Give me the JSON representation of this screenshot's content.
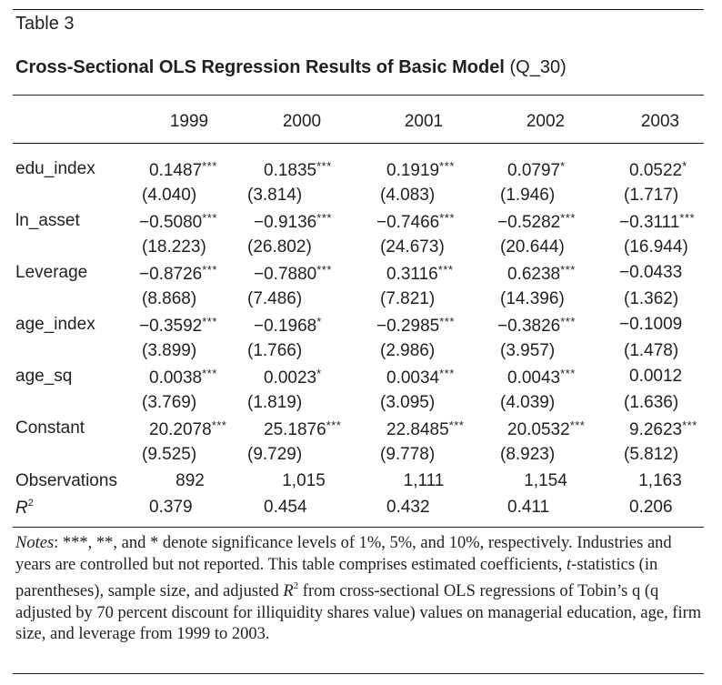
{
  "table_label": "Table 3",
  "title": {
    "bold": "Cross-Sectional OLS Regression Results of Basic Model",
    "plain": "(Q_30)"
  },
  "columns": [
    "1999",
    "2000",
    "2001",
    "2002",
    "2003"
  ],
  "rows": [
    {
      "label": "edu_index",
      "coefs": [
        {
          "v": "0.1487",
          "s": "***"
        },
        {
          "v": "0.1835",
          "s": "***"
        },
        {
          "v": "0.1919",
          "s": "***"
        },
        {
          "v": "0.0797",
          "s": "*"
        },
        {
          "v": "0.0522",
          "s": "*"
        }
      ],
      "tstats": [
        "(4.040)",
        "(3.814)",
        "(4.083)",
        "(1.946)",
        "(1.717)"
      ]
    },
    {
      "label": "ln_asset",
      "coefs": [
        {
          "v": "−0.5080",
          "s": "***"
        },
        {
          "v": "−0.9136",
          "s": "***"
        },
        {
          "v": "−0.7466",
          "s": "***"
        },
        {
          "v": "−0.5282",
          "s": "***"
        },
        {
          "v": "−0.3111",
          "s": "***"
        }
      ],
      "tstats": [
        "(18.223)",
        "(26.802)",
        "(24.673)",
        "(20.644)",
        "(16.944)"
      ]
    },
    {
      "label": "Leverage",
      "coefs": [
        {
          "v": "−0.8726",
          "s": "***"
        },
        {
          "v": "−0.7880",
          "s": "***"
        },
        {
          "v": "0.3116",
          "s": "***"
        },
        {
          "v": "0.6238",
          "s": "***"
        },
        {
          "v": "−0.0433",
          "s": ""
        }
      ],
      "tstats": [
        "(8.868)",
        "(7.486)",
        "(7.821)",
        "(14.396)",
        "(1.362)"
      ]
    },
    {
      "label": "age_index",
      "coefs": [
        {
          "v": "−0.3592",
          "s": "***"
        },
        {
          "v": "−0.1968",
          "s": "*"
        },
        {
          "v": "−0.2985",
          "s": "***"
        },
        {
          "v": "−0.3826",
          "s": "***"
        },
        {
          "v": "−0.1009",
          "s": ""
        }
      ],
      "tstats": [
        "(3.899)",
        "(1.766)",
        "(2.986)",
        "(3.957)",
        "(1.478)"
      ]
    },
    {
      "label": "age_sq",
      "coefs": [
        {
          "v": "0.0038",
          "s": "***"
        },
        {
          "v": "0.0023",
          "s": "*"
        },
        {
          "v": "0.0034",
          "s": "***"
        },
        {
          "v": "0.0043",
          "s": "***"
        },
        {
          "v": "0.0012",
          "s": ""
        }
      ],
      "tstats": [
        "(3.769)",
        "(1.819)",
        "(3.095)",
        "(4.039)",
        "(1.636)"
      ]
    },
    {
      "label": "Constant",
      "coefs": [
        {
          "v": "20.2078",
          "s": "***"
        },
        {
          "v": "25.1876",
          "s": "***"
        },
        {
          "v": "22.8485",
          "s": "***"
        },
        {
          "v": "20.0532",
          "s": "***"
        },
        {
          "v": "9.2623",
          "s": "***"
        }
      ],
      "tstats": [
        "(9.525)",
        "(9.729)",
        "(9.778)",
        "(8.923)",
        "(5.812)"
      ]
    }
  ],
  "observations": {
    "label": "Observations",
    "values": [
      "892",
      "1,015",
      "1,111",
      "1,154",
      "1,163"
    ]
  },
  "r2": {
    "label_base": "R",
    "label_sup": "2",
    "values": [
      "0.379",
      "0.454",
      "0.432",
      "0.411",
      "0.206"
    ]
  },
  "notes": {
    "lead": "Notes",
    "p1": ": ***, **, and * denote significance levels of 1%, 5%, and 10%, respectively. Industries and years are controlled but not reported. This table comprises estimated coefficients, ",
    "t_italic": "t",
    "p2": "-statistics (in parentheses), sample size, and adjusted ",
    "r_italic": "R",
    "r_sup": "2",
    "p3": " from cross-sectional OLS regressions of Tobin’s q (q adjusted by 70 percent discount for illiquidity shares value) values on managerial education, age, firm size, and leverage from 1999 to 2003."
  }
}
